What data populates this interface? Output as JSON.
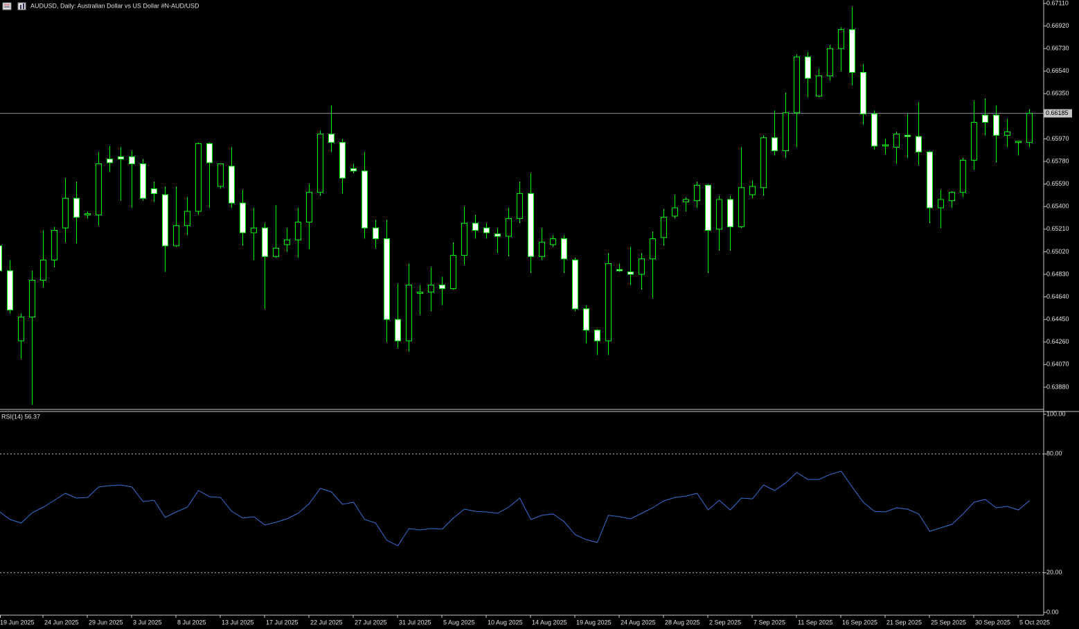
{
  "chart_data": [
    {
      "type": "candlestick",
      "title": "AUDUSD, Daily:  Australian Dollar vs US Dollar #N-AUD/USD",
      "categories": [
        "19 Jun 2025",
        null,
        null,
        null,
        "24 Jun 2025",
        null,
        null,
        null,
        "29 Jun 2025",
        null,
        null,
        null,
        "3 Jul 2025",
        null,
        null,
        null,
        "8 Jul 2025",
        null,
        null,
        null,
        "13 Jul 2025",
        null,
        null,
        null,
        "17 Jul 2025",
        null,
        null,
        null,
        "22 Jul 2025",
        null,
        null,
        null,
        "27 Jul 2025",
        null,
        null,
        null,
        "31 Jul 2025",
        null,
        null,
        null,
        "5 Aug 2025",
        null,
        null,
        null,
        "10 Aug 2025",
        null,
        null,
        null,
        "14 Aug 2025",
        null,
        null,
        null,
        "19 Aug 2025",
        null,
        null,
        null,
        "24 Aug 2025",
        null,
        null,
        null,
        "28 Aug 2025",
        null,
        null,
        null,
        "2 Sep 2025",
        null,
        null,
        null,
        "7 Sep 2025",
        null,
        null,
        null,
        "11 Sep 2025",
        null,
        null,
        null,
        "16 Sep 2025",
        null,
        null,
        null,
        "21 Sep 2025",
        null,
        null,
        null,
        "25 Sep 2025",
        null,
        null,
        null,
        "30 Sep 2025",
        null,
        null,
        null,
        "5 Oct 2025",
        null
      ],
      "open": [
        0.6507,
        0.6486,
        0.6427,
        0.6447,
        0.6478,
        0.6495,
        0.6522,
        0.6547,
        0.6533,
        0.6533,
        0.658,
        0.6582,
        0.6582,
        0.6576,
        0.6555,
        0.655,
        0.6507,
        0.6524,
        0.6536,
        0.6593,
        0.6557,
        0.6574,
        0.6543,
        0.6518,
        0.6522,
        0.6498,
        0.6508,
        0.6512,
        0.6527,
        0.6552,
        0.6601,
        0.6594,
        0.6572,
        0.657,
        0.6522,
        0.6513,
        0.6445,
        0.6427,
        0.6467,
        0.6468,
        0.6474,
        0.6471,
        0.6499,
        0.6526,
        0.6522,
        0.6517,
        0.6515,
        0.653,
        0.6551,
        0.6498,
        0.6508,
        0.6513,
        0.6495,
        0.6454,
        0.6436,
        0.6427,
        0.6487,
        0.6485,
        0.6483,
        0.6496,
        0.6514,
        0.6532,
        0.6544,
        0.6545,
        0.6558,
        0.6521,
        0.6546,
        0.6523,
        0.655,
        0.6556,
        0.6598,
        0.6587,
        0.6619,
        0.6666,
        0.6633,
        0.665,
        0.6673,
        0.6689,
        0.6653,
        0.6618,
        0.6591,
        0.659,
        0.66,
        0.6599,
        0.6586,
        0.6539,
        0.6545,
        0.6552,
        0.6579,
        0.6617,
        0.6617,
        0.66,
        0.6594,
        0.6594
      ],
      "high": [
        0.651,
        0.6495,
        0.645,
        0.6486,
        0.652,
        0.6523,
        0.6564,
        0.6561,
        0.6536,
        0.6586,
        0.6591,
        0.659,
        0.6587,
        0.658,
        0.6561,
        0.6557,
        0.6557,
        0.6548,
        0.6594,
        0.6594,
        0.6576,
        0.659,
        0.6554,
        0.6539,
        0.6526,
        0.6541,
        0.6522,
        0.6539,
        0.6559,
        0.6604,
        0.6625,
        0.6597,
        0.6576,
        0.6586,
        0.6529,
        0.6529,
        0.6475,
        0.6492,
        0.6474,
        0.6489,
        0.6481,
        0.651,
        0.654,
        0.6533,
        0.6526,
        0.6522,
        0.6539,
        0.6561,
        0.6568,
        0.6522,
        0.6516,
        0.6516,
        0.6497,
        0.6457,
        0.6437,
        0.6501,
        0.6492,
        0.6506,
        0.6501,
        0.6519,
        0.6538,
        0.655,
        0.6548,
        0.6561,
        0.6559,
        0.6549,
        0.6549,
        0.659,
        0.6562,
        0.66,
        0.6621,
        0.6636,
        0.6668,
        0.667,
        0.6656,
        0.6676,
        0.6691,
        0.6708,
        0.666,
        0.6621,
        0.6597,
        0.6603,
        0.6618,
        0.6628,
        0.6587,
        0.6554,
        0.6553,
        0.6581,
        0.6629,
        0.6631,
        0.6625,
        0.6614,
        0.6595,
        0.6622
      ],
      "low": [
        0.6485,
        0.645,
        0.6412,
        0.6373,
        0.6472,
        0.6489,
        0.651,
        0.6509,
        0.653,
        0.6524,
        0.6569,
        0.6545,
        0.6539,
        0.6545,
        0.6544,
        0.6485,
        0.6506,
        0.6516,
        0.6533,
        0.6539,
        0.6555,
        0.6539,
        0.6507,
        0.6495,
        0.6454,
        0.6497,
        0.6502,
        0.6497,
        0.6504,
        0.6549,
        0.6586,
        0.6551,
        0.6568,
        0.6513,
        0.6505,
        0.6426,
        0.6421,
        0.6418,
        0.6449,
        0.6452,
        0.6457,
        0.647,
        0.6491,
        0.6513,
        0.6513,
        0.6501,
        0.6498,
        0.6526,
        0.6484,
        0.6495,
        0.6506,
        0.6484,
        0.6452,
        0.6425,
        0.6415,
        0.6415,
        0.6485,
        0.6474,
        0.647,
        0.6463,
        0.6507,
        0.653,
        0.6536,
        0.6539,
        0.6484,
        0.6503,
        0.6503,
        0.6522,
        0.6547,
        0.6549,
        0.6583,
        0.6581,
        0.659,
        0.6632,
        0.6632,
        0.6646,
        0.6654,
        0.6642,
        0.6609,
        0.6588,
        0.6584,
        0.6576,
        0.6581,
        0.6575,
        0.6526,
        0.6522,
        0.6539,
        0.6548,
        0.6571,
        0.66,
        0.6577,
        0.659,
        0.6583,
        0.659
      ],
      "close": [
        0.6486,
        0.6453,
        0.6447,
        0.6478,
        0.6495,
        0.652,
        0.6547,
        0.6531,
        0.6534,
        0.6576,
        0.6577,
        0.658,
        0.6576,
        0.6547,
        0.6551,
        0.6507,
        0.6524,
        0.6536,
        0.6593,
        0.6577,
        0.6576,
        0.6543,
        0.6518,
        0.6522,
        0.6498,
        0.6505,
        0.6512,
        0.6527,
        0.6552,
        0.6601,
        0.6594,
        0.6564,
        0.657,
        0.6522,
        0.6513,
        0.6445,
        0.6427,
        0.6474,
        0.6468,
        0.6474,
        0.6471,
        0.6499,
        0.6526,
        0.652,
        0.6518,
        0.6515,
        0.653,
        0.6551,
        0.6498,
        0.651,
        0.6513,
        0.6496,
        0.6454,
        0.6436,
        0.6427,
        0.6492,
        0.6486,
        0.6483,
        0.6496,
        0.6513,
        0.6531,
        0.6539,
        0.6546,
        0.6558,
        0.652,
        0.6546,
        0.6523,
        0.6556,
        0.6557,
        0.6598,
        0.6587,
        0.6619,
        0.6666,
        0.6648,
        0.665,
        0.6673,
        0.6689,
        0.6653,
        0.6618,
        0.6591,
        0.6592,
        0.6601,
        0.6599,
        0.6586,
        0.6539,
        0.6546,
        0.6552,
        0.6579,
        0.6611,
        0.6611,
        0.66,
        0.6603,
        0.6595,
        0.66185
      ],
      "up_color": "#000000",
      "down_color": "#ffffff",
      "wick_color": "#00ff00",
      "ylim": [
        0.63693,
        0.67139
      ],
      "yticks": [
        {
          "value": 0.6711,
          "label": "0.67110"
        },
        {
          "value": 0.6692,
          "label": "0.66920"
        },
        {
          "value": 0.6673,
          "label": "0.66730"
        },
        {
          "value": 0.6654,
          "label": "0.66540"
        },
        {
          "value": 0.6635,
          "label": "0.66350"
        },
        {
          "value": 0.6597,
          "label": "0.65970"
        },
        {
          "value": 0.6578,
          "label": "0.65780"
        },
        {
          "value": 0.6559,
          "label": "0.65590"
        },
        {
          "value": 0.654,
          "label": "0.65400"
        },
        {
          "value": 0.6521,
          "label": "0.65210"
        },
        {
          "value": 0.6502,
          "label": "0.65020"
        },
        {
          "value": 0.6483,
          "label": "0.64830"
        },
        {
          "value": 0.6464,
          "label": "0.64640"
        },
        {
          "value": 0.6445,
          "label": "0.64450"
        },
        {
          "value": 0.6426,
          "label": "0.64260"
        },
        {
          "value": 0.6407,
          "label": "0.64070"
        },
        {
          "value": 0.6388,
          "label": "0.63880"
        }
      ],
      "current_price": {
        "value": 0.66185,
        "label": "0.66185"
      }
    },
    {
      "type": "line",
      "title": "RSI(14) 56.37",
      "color": "#3b6fd8",
      "values": [
        51.0,
        46.9,
        45.1,
        50.3,
        53.1,
        56.6,
        60.1,
        57.7,
        58.0,
        63.3,
        64.0,
        64.3,
        63.3,
        55.9,
        56.6,
        47.9,
        50.7,
        53.1,
        61.5,
        58.4,
        58.0,
        51.0,
        47.6,
        48.3,
        44.1,
        45.5,
        47.2,
        50.0,
        54.9,
        62.6,
        60.8,
        54.5,
        55.6,
        46.9,
        45.1,
        36.4,
        33.6,
        42.3,
        41.6,
        42.3,
        42.0,
        47.6,
        52.1,
        51.0,
        50.7,
        50.0,
        53.1,
        57.7,
        46.9,
        49.0,
        49.7,
        45.8,
        39.2,
        36.7,
        35.3,
        49.0,
        48.3,
        47.2,
        50.0,
        52.8,
        56.3,
        58.0,
        58.7,
        60.1,
        51.7,
        56.6,
        51.7,
        57.7,
        57.3,
        64.3,
        61.5,
        65.4,
        70.6,
        67.1,
        67.1,
        69.6,
        71.3,
        63.3,
        55.6,
        51.0,
        50.7,
        52.8,
        52.1,
        49.7,
        40.9,
        42.7,
        44.4,
        49.7,
        55.6,
        57.0,
        52.8,
        53.5,
        51.7,
        56.37
      ],
      "ylim": [
        0,
        100
      ],
      "yticks": [
        {
          "value": 100,
          "label": "100.00"
        },
        {
          "value": 80,
          "label": "80.00"
        },
        {
          "value": 20,
          "label": "20.00"
        },
        {
          "value": 0,
          "label": "0.00"
        }
      ]
    }
  ]
}
